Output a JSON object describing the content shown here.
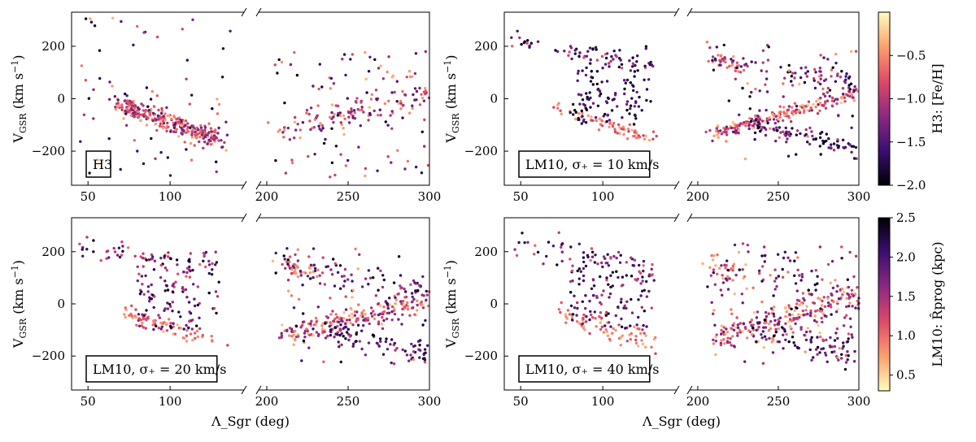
{
  "chart_data": [
    {
      "type": "scatter",
      "panel": "H3",
      "label": "H3",
      "color_by": "H3: [Fe/H]",
      "xlabel": "Λ_Sgr (deg)",
      "ylabel": "V_GSR (km s^-1)",
      "ylim": [
        -330,
        330
      ],
      "y_ticks": [
        -200,
        0,
        200
      ],
      "broken_x_axis": {
        "left": {
          "xlim": [
            40,
            145
          ],
          "ticks": [
            50,
            100
          ]
        },
        "right": {
          "xlim": [
            195,
            300
          ],
          "ticks": [
            200,
            250,
            300
          ]
        }
      },
      "trend": [
        {
          "x": 70,
          "y": -20,
          "spread": 18
        },
        {
          "x": 130,
          "y": -160,
          "spread": 18
        }
      ],
      "scatter_extent": {
        "x": [
          45,
          300
        ],
        "y": [
          -300,
          320
        ]
      }
    },
    {
      "type": "scatter",
      "panel": "LM10 σ+=10",
      "label": "LM10, σ₊ = 10 km/s",
      "color_by": "H3: [Fe/H]",
      "xlabel": "",
      "ylabel": "V_GSR (km s^-1)",
      "ylim": [
        -330,
        330
      ],
      "y_ticks": [
        -200,
        0,
        200
      ],
      "broken_x_axis": {
        "left": {
          "xlim": [
            40,
            145
          ],
          "ticks": [
            50,
            100
          ]
        },
        "right": {
          "xlim": [
            195,
            300
          ],
          "ticks": [
            200,
            250,
            300
          ]
        }
      },
      "streams": [
        {
          "desc": "leading arm, descending",
          "from": [
            70,
            -20
          ],
          "to": [
            130,
            -150
          ]
        },
        {
          "desc": "trailing arm, upper",
          "from": [
            45,
            230
          ],
          "to": [
            130,
            120
          ]
        },
        {
          "desc": "rising branch",
          "from": [
            210,
            -130
          ],
          "to": [
            300,
            20
          ]
        },
        {
          "desc": "upper branch",
          "from": [
            200,
            160
          ],
          "to": [
            300,
            80
          ]
        }
      ]
    },
    {
      "type": "scatter",
      "panel": "LM10 σ+=20",
      "label": "LM10, σ₊ = 20 km/s",
      "color_by": "LM10: R̂_prog (kpc)",
      "xlabel": "Λ_Sgr (deg)",
      "ylabel": "V_GSR (km s^-1)",
      "ylim": [
        -330,
        330
      ],
      "y_ticks": [
        -200,
        0,
        200
      ],
      "broken_x_axis": {
        "left": {
          "xlim": [
            40,
            145
          ],
          "ticks": [
            50,
            100
          ]
        },
        "right": {
          "xlim": [
            195,
            300
          ],
          "ticks": [
            200,
            250,
            300
          ]
        }
      }
    },
    {
      "type": "scatter",
      "panel": "LM10 σ+=40",
      "label": "LM10, σ₊ = 40 km/s",
      "color_by": "LM10: R̂_prog (kpc)",
      "xlabel": "Λ_Sgr (deg)",
      "ylabel": "",
      "ylim": [
        -330,
        330
      ],
      "y_ticks": [
        -200,
        0,
        200
      ],
      "broken_x_axis": {
        "left": {
          "xlim": [
            40,
            145
          ],
          "ticks": [
            50,
            100
          ]
        },
        "right": {
          "xlim": [
            195,
            300
          ],
          "ticks": [
            200,
            250,
            300
          ]
        }
      }
    }
  ],
  "colorbars": [
    {
      "label": "H3: [Fe/H]",
      "range": [
        -2.0,
        0.0
      ],
      "ticks": [
        "−0.5",
        "−1.0",
        "−1.5",
        "−2.0"
      ],
      "colormap": "magma",
      "reversed": false
    },
    {
      "label": "LM10: R̂_prog (kpc)",
      "range": [
        0.3,
        2.5
      ],
      "ticks": [
        "2.5",
        "2.0",
        "1.5",
        "1.0",
        "0.5"
      ],
      "colormap": "magma",
      "reversed": true
    }
  ],
  "text": {
    "xlabel": "Λ_Sgr (deg)",
    "ylabel_main": "V",
    "ylabel_sub": "GSR",
    "ylabel_units": "(km s",
    "ylabel_exp": "−1",
    "ylabel_close": ")",
    "panel_1": "H3",
    "panel_2": "LM10, σ₊ = 10 km/s",
    "panel_3": "LM10, σ₊ = 20 km/s",
    "panel_4": "LM10, σ₊ = 40 km/s",
    "cbar_top_label": "H3: [Fe/H]",
    "cbar_bottom_label": "LM10: R̂prog (kpc)"
  },
  "colors": {
    "cmap_stops": [
      "#000004",
      "#3b0f70",
      "#8c2981",
      "#de4968",
      "#fe9f6d",
      "#fcfdbf"
    ]
  }
}
